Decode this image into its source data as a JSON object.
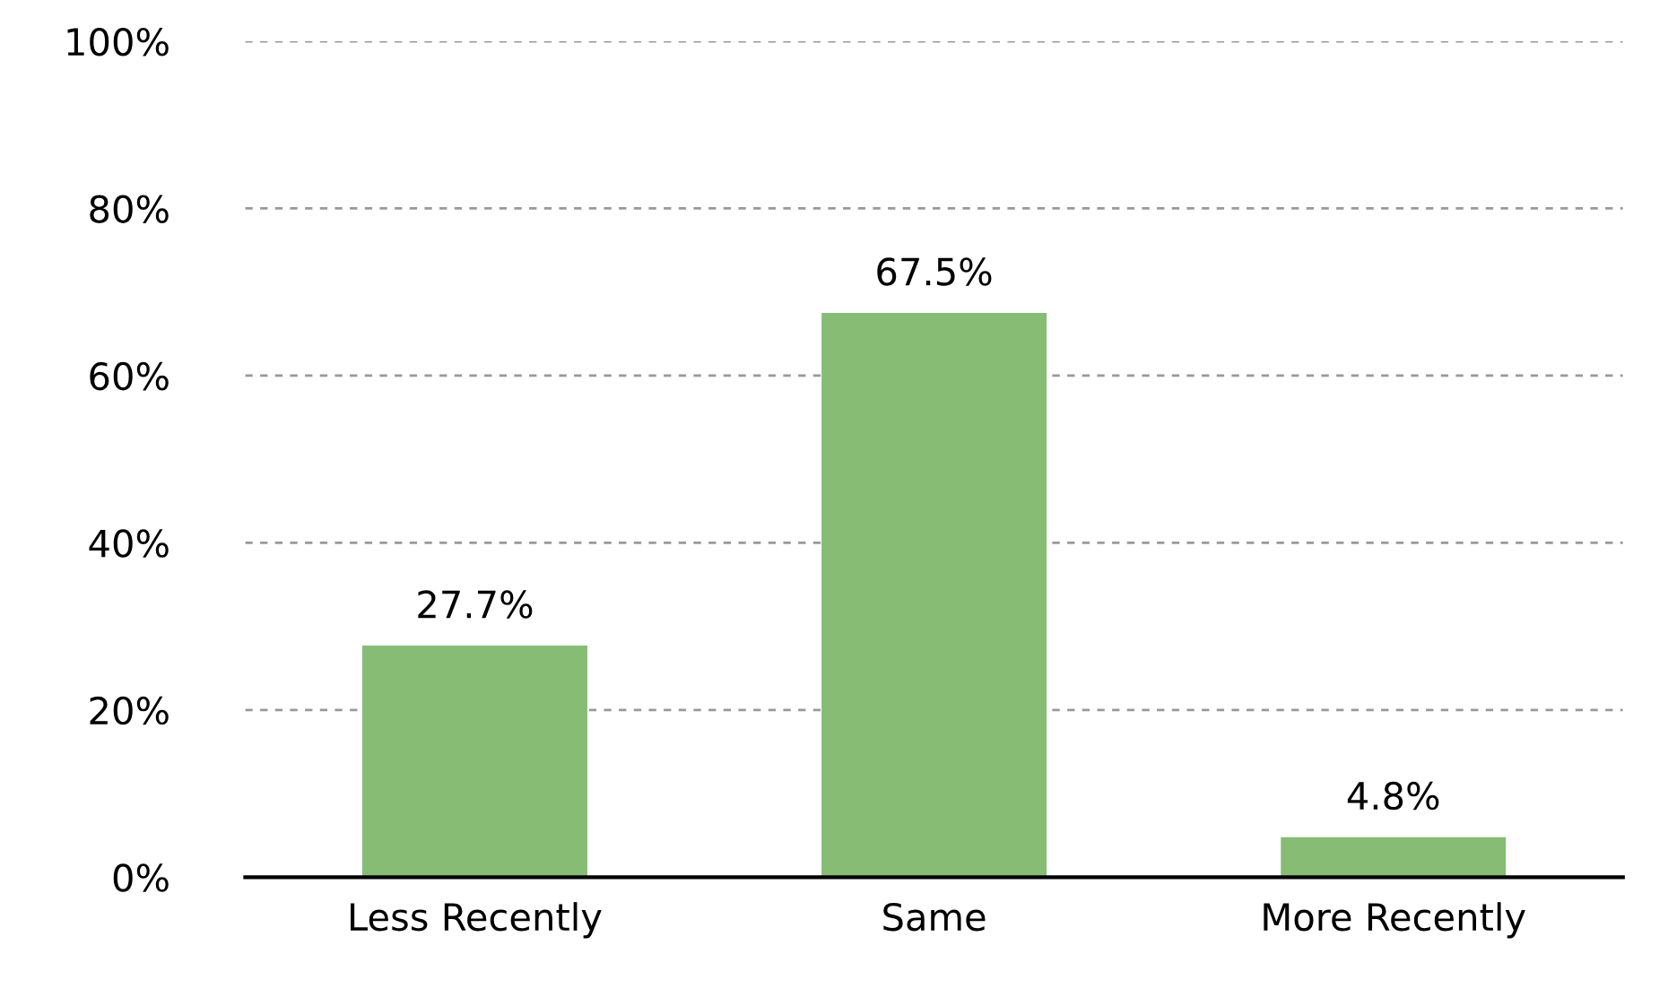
{
  "chart_data": {
    "type": "bar",
    "categories": [
      "Less Recently",
      "Same",
      "More Recently"
    ],
    "values": [
      27.7,
      67.5,
      4.8
    ],
    "value_labels": [
      "27.7%",
      "67.5%",
      "4.8%"
    ],
    "color": "#86bc74",
    "ylim": [
      0,
      100
    ],
    "yticks": [
      {
        "value": 0,
        "label": "0%"
      },
      {
        "value": 20,
        "label": "20%"
      },
      {
        "value": 40,
        "label": "40%"
      },
      {
        "value": 60,
        "label": "60%"
      },
      {
        "value": 80,
        "label": "80%"
      },
      {
        "value": 100,
        "label": "100%"
      }
    ],
    "grid": "y",
    "legend": false
  }
}
